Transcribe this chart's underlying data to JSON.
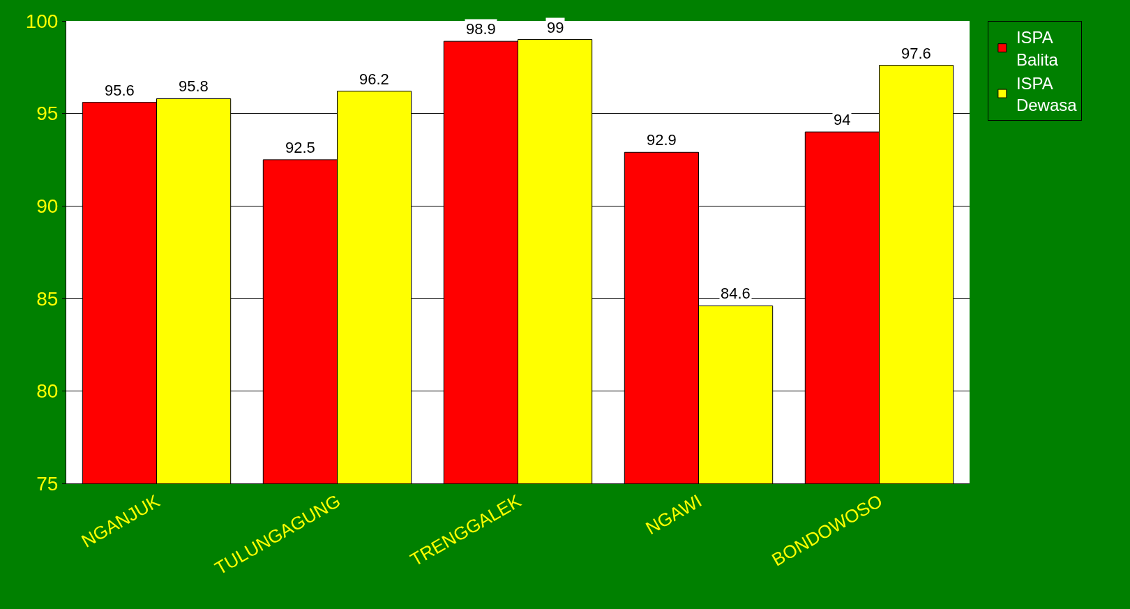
{
  "chart_data": {
    "type": "bar",
    "categories": [
      "NGANJUK",
      "TULUNGAGUNG",
      "TRENGGALEK",
      "NGAWI",
      "BONDOWOSO"
    ],
    "series": [
      {
        "name": "ISPA Balita",
        "color": "#ff0000",
        "values": [
          95.6,
          92.5,
          98.9,
          92.9,
          94
        ]
      },
      {
        "name": "ISPA Dewasa",
        "color": "#ffff00",
        "values": [
          95.8,
          96.2,
          99,
          84.6,
          97.6
        ]
      }
    ],
    "ylim": [
      75,
      100
    ],
    "yticks": [
      75,
      80,
      85,
      90,
      95,
      100
    ],
    "grid": "y",
    "legend": "right",
    "data_labels": true
  }
}
